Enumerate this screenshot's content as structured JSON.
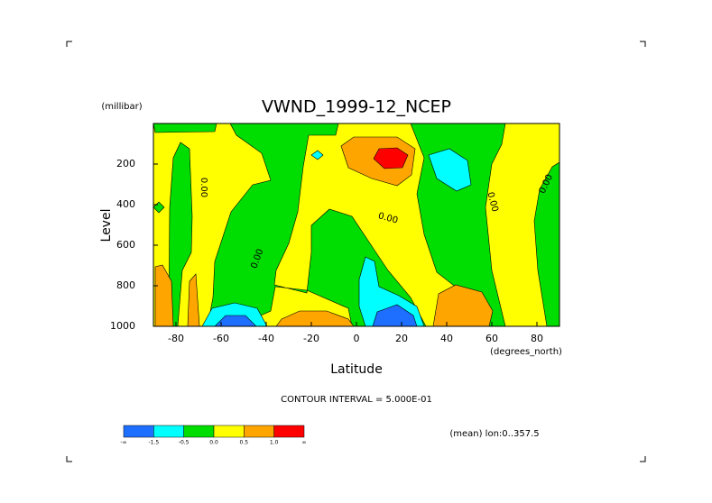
{
  "chart_data": {
    "type": "contour",
    "title": "VWND_1999-12_NCEP",
    "y_units": "(millibar)",
    "ylabel": "Level",
    "xlabel": "Latitude",
    "x_units": "(degrees_north)",
    "xlim": [
      -90,
      90
    ],
    "ylim": [
      1000,
      0
    ],
    "xticks": [
      -80,
      -60,
      -40,
      -20,
      0,
      20,
      40,
      60,
      80
    ],
    "yticks": [
      200,
      400,
      600,
      800,
      1000
    ],
    "contour_interval": "CONTOUR INTERVAL = 5.000E-01",
    "footer": "(mean) lon:0..357.5",
    "contour_labels": [
      "0.00",
      "0.00",
      "0.00",
      "0.00",
      "0.00"
    ],
    "colorbar": {
      "colors": [
        "#1e6eff",
        "#00ffff",
        "#00dd00",
        "#ffff00",
        "#ffa500",
        "#ff0000"
      ],
      "labels": [
        "-∞",
        "-1.5",
        "-0.5",
        "0.0",
        "0.5",
        "1.0",
        "∞"
      ]
    }
  }
}
